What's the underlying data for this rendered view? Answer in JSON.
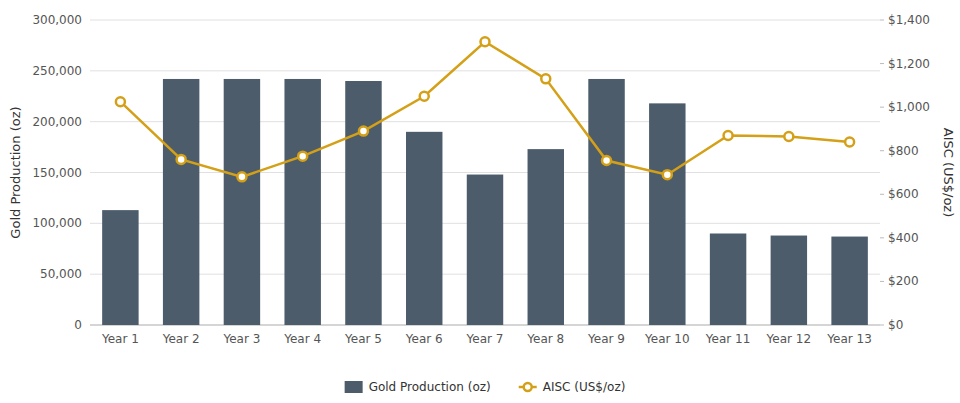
{
  "chart_data": {
    "type": "bar",
    "categories": [
      "Year 1",
      "Year 2",
      "Year 3",
      "Year 4",
      "Year 5",
      "Year 6",
      "Year 7",
      "Year 8",
      "Year 9",
      "Year 10",
      "Year 11",
      "Year 12",
      "Year 13"
    ],
    "series": [
      {
        "name": "Gold Production (oz)",
        "type": "bar",
        "color": "#4d5c6b",
        "values": [
          113000,
          242000,
          242000,
          242000,
          240000,
          190000,
          148000,
          173000,
          242000,
          218000,
          90000,
          88000,
          87000
        ]
      },
      {
        "name": "AISC (US$/oz)",
        "type": "line",
        "axis": "y2",
        "color": "#d4a017",
        "marker": "circle",
        "values": [
          1025,
          760,
          680,
          775,
          890,
          1050,
          1300,
          1130,
          755,
          690,
          870,
          865,
          840
        ]
      }
    ],
    "ylabel": "Gold Production (oz)",
    "y2label": "AISC (US$/oz)",
    "ylim": [
      0,
      300000
    ],
    "yticks": [
      0,
      {
        "value": 50000,
        "label": "50,000"
      },
      {
        "value": 100000,
        "label": "100,000"
      },
      {
        "value": 150000,
        "label": "150,000"
      },
      {
        "value": 200000,
        "label": "200,000"
      },
      {
        "value": 250000,
        "label": "250,000"
      },
      {
        "value": 300000,
        "label": "300,000"
      }
    ],
    "y2lim": [
      0,
      1400
    ],
    "y2ticks": [
      {
        "value": 0,
        "label": "$0"
      },
      {
        "value": 200,
        "label": "$200"
      },
      {
        "value": 400,
        "label": "$400"
      },
      {
        "value": 600,
        "label": "$600"
      },
      {
        "value": 800,
        "label": "$800"
      },
      {
        "value": 1000,
        "label": "$1,000"
      },
      {
        "value": 1200,
        "label": "$1,200"
      },
      {
        "value": 1400,
        "label": "$1,400"
      }
    ],
    "grid": true,
    "legend": "bottom"
  }
}
